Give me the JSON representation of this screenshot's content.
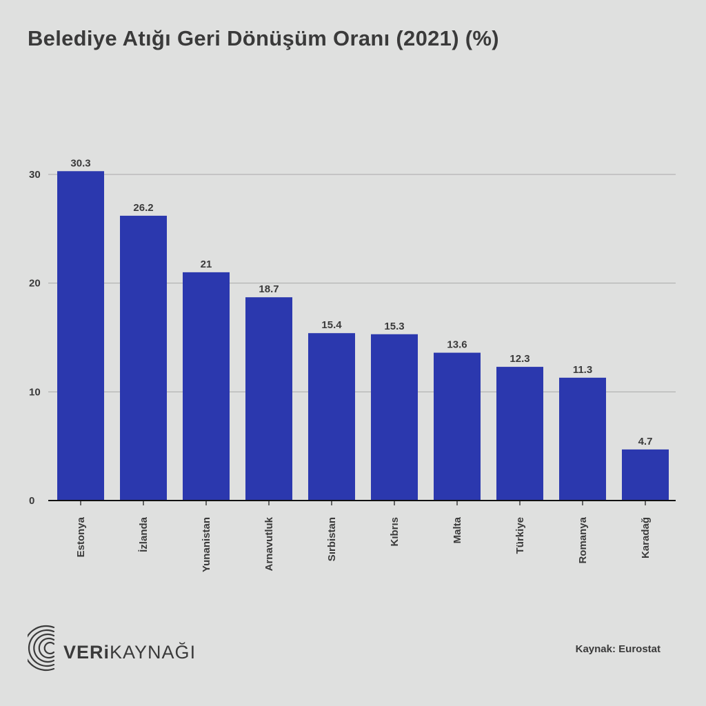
{
  "title": "Belediye Atığı Geri Dönüşüm Oranı (2021) (%)",
  "source": "Kaynak: Eurostat",
  "brand": {
    "bold": "VERi",
    "light": "KAYNAĞI"
  },
  "colors": {
    "background": "#dfe0df",
    "bar": "#2b38ae",
    "grid": "#a9a9a9",
    "axis": "#111111",
    "text": "#3a3a3a"
  },
  "chart_data": {
    "type": "bar",
    "title": "Belediye Atığı Geri Dönüşüm Oranı (2021) (%)",
    "xlabel": "",
    "ylabel": "",
    "categories": [
      "Estonya",
      "İzlanda",
      "Yunanistan",
      "Arnavutluk",
      "Sırbistan",
      "Kıbrıs",
      "Malta",
      "Türkiye",
      "Romanya",
      "Karadağ"
    ],
    "values": [
      30.3,
      26.2,
      21,
      18.7,
      15.4,
      15.3,
      13.6,
      12.3,
      11.3,
      4.7
    ],
    "value_labels": [
      "30.3",
      "26.2",
      "21",
      "18.7",
      "15.4",
      "15.3",
      "13.6",
      "12.3",
      "11.3",
      "4.7"
    ],
    "yticks": [
      0,
      10,
      20,
      30
    ],
    "ylim": [
      0,
      30
    ],
    "grid": true,
    "legend": "none"
  }
}
